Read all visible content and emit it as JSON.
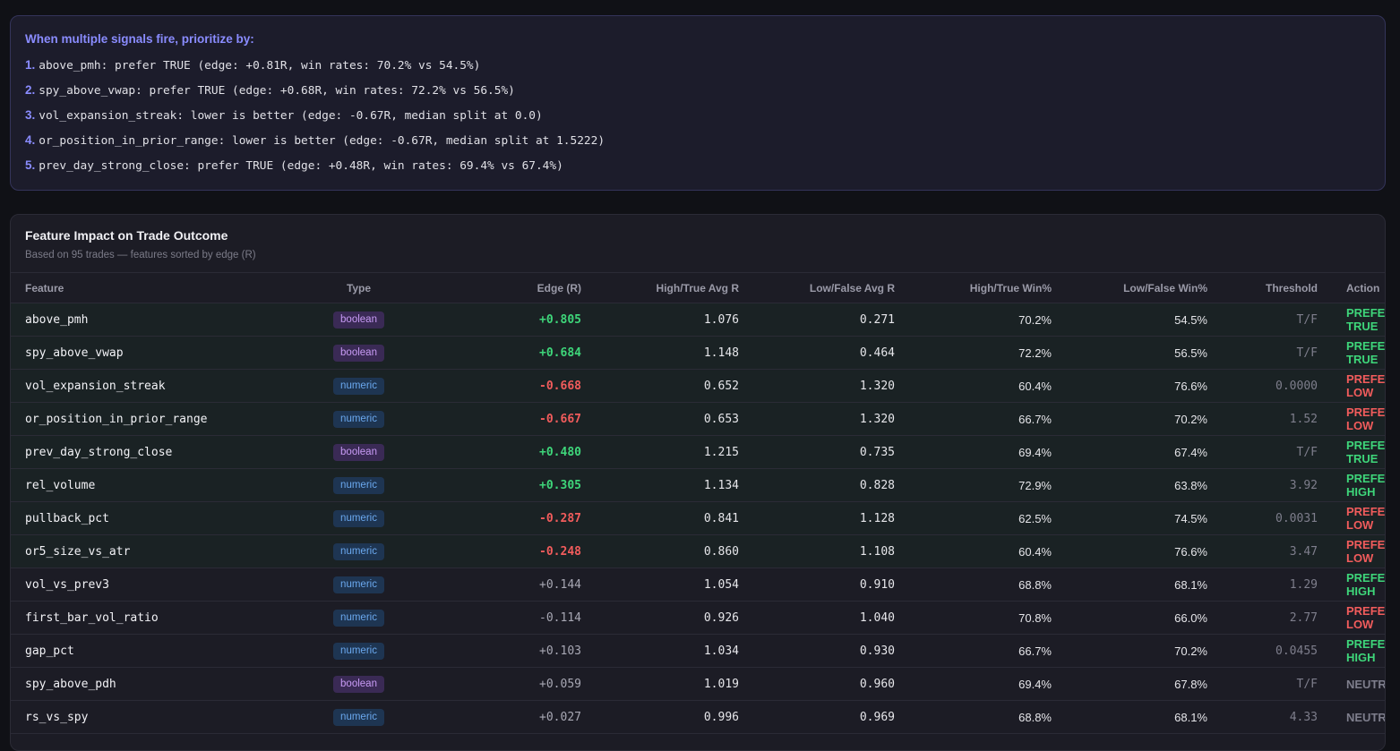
{
  "priority": {
    "title": "When multiple signals fire, prioritize by:",
    "items": [
      {
        "num": "1.",
        "text": "above_pmh: prefer TRUE (edge: +0.81R, win rates: 70.2% vs 54.5%)"
      },
      {
        "num": "2.",
        "text": "spy_above_vwap: prefer TRUE (edge: +0.68R, win rates: 72.2% vs 56.5%)"
      },
      {
        "num": "3.",
        "text": "vol_expansion_streak: lower is better (edge: -0.67R, median split at 0.0)"
      },
      {
        "num": "4.",
        "text": "or_position_in_prior_range: lower is better (edge: -0.67R, median split at 1.5222)"
      },
      {
        "num": "5.",
        "text": "prev_day_strong_close: prefer TRUE (edge: +0.48R, win rates: 69.4% vs 67.4%)"
      }
    ]
  },
  "impact": {
    "title": "Feature Impact on Trade Outcome",
    "subtitle": "Based on 95 trades — features sorted by edge (R)",
    "columns": {
      "feature": "Feature",
      "type": "Type",
      "edge": "Edge (R)",
      "high_avg": "High/True Avg R",
      "low_avg": "Low/False Avg R",
      "high_win": "High/True Win%",
      "low_win": "Low/False Win%",
      "threshold": "Threshold",
      "action": "Action"
    },
    "rows": [
      {
        "feature": "above_pmh",
        "type": "boolean",
        "edge": "+0.805",
        "high_avg": "1.076",
        "low_avg": "0.271",
        "high_win": "70.2%",
        "low_win": "54.5%",
        "threshold": "T/F",
        "action": "PREFER TRUE",
        "edge_style": "pos",
        "action_style": "true",
        "strong": true
      },
      {
        "feature": "spy_above_vwap",
        "type": "boolean",
        "edge": "+0.684",
        "high_avg": "1.148",
        "low_avg": "0.464",
        "high_win": "72.2%",
        "low_win": "56.5%",
        "threshold": "T/F",
        "action": "PREFER TRUE",
        "edge_style": "pos",
        "action_style": "true",
        "strong": true
      },
      {
        "feature": "vol_expansion_streak",
        "type": "numeric",
        "edge": "-0.668",
        "high_avg": "0.652",
        "low_avg": "1.320",
        "high_win": "60.4%",
        "low_win": "76.6%",
        "threshold": "0.0000",
        "action": "PREFER LOW",
        "edge_style": "neg",
        "action_style": "low",
        "strong": true
      },
      {
        "feature": "or_position_in_prior_range",
        "type": "numeric",
        "edge": "-0.667",
        "high_avg": "0.653",
        "low_avg": "1.320",
        "high_win": "66.7%",
        "low_win": "70.2%",
        "threshold": "1.52",
        "action": "PREFER LOW",
        "edge_style": "neg",
        "action_style": "low",
        "strong": true
      },
      {
        "feature": "prev_day_strong_close",
        "type": "boolean",
        "edge": "+0.480",
        "high_avg": "1.215",
        "low_avg": "0.735",
        "high_win": "69.4%",
        "low_win": "67.4%",
        "threshold": "T/F",
        "action": "PREFER TRUE",
        "edge_style": "pos",
        "action_style": "true",
        "strong": true
      },
      {
        "feature": "rel_volume",
        "type": "numeric",
        "edge": "+0.305",
        "high_avg": "1.134",
        "low_avg": "0.828",
        "high_win": "72.9%",
        "low_win": "63.8%",
        "threshold": "3.92",
        "action": "PREFER HIGH",
        "edge_style": "pos",
        "action_style": "high",
        "strong": true
      },
      {
        "feature": "pullback_pct",
        "type": "numeric",
        "edge": "-0.287",
        "high_avg": "0.841",
        "low_avg": "1.128",
        "high_win": "62.5%",
        "low_win": "74.5%",
        "threshold": "0.0031",
        "action": "PREFER LOW",
        "edge_style": "neg",
        "action_style": "low",
        "strong": true
      },
      {
        "feature": "or5_size_vs_atr",
        "type": "numeric",
        "edge": "-0.248",
        "high_avg": "0.860",
        "low_avg": "1.108",
        "high_win": "60.4%",
        "low_win": "76.6%",
        "threshold": "3.47",
        "action": "PREFER LOW",
        "edge_style": "neg",
        "action_style": "low",
        "strong": true
      },
      {
        "feature": "vol_vs_prev3",
        "type": "numeric",
        "edge": "+0.144",
        "high_avg": "1.054",
        "low_avg": "0.910",
        "high_win": "68.8%",
        "low_win": "68.1%",
        "threshold": "1.29",
        "action": "PREFER HIGH",
        "edge_style": "weak",
        "action_style": "high",
        "strong": false
      },
      {
        "feature": "first_bar_vol_ratio",
        "type": "numeric",
        "edge": "-0.114",
        "high_avg": "0.926",
        "low_avg": "1.040",
        "high_win": "70.8%",
        "low_win": "66.0%",
        "threshold": "2.77",
        "action": "PREFER LOW",
        "edge_style": "weak",
        "action_style": "low",
        "strong": false
      },
      {
        "feature": "gap_pct",
        "type": "numeric",
        "edge": "+0.103",
        "high_avg": "1.034",
        "low_avg": "0.930",
        "high_win": "66.7%",
        "low_win": "70.2%",
        "threshold": "0.0455",
        "action": "PREFER HIGH",
        "edge_style": "weak",
        "action_style": "high",
        "strong": false
      },
      {
        "feature": "spy_above_pdh",
        "type": "boolean",
        "edge": "+0.059",
        "high_avg": "1.019",
        "low_avg": "0.960",
        "high_win": "69.4%",
        "low_win": "67.8%",
        "threshold": "T/F",
        "action": "NEUTRAL",
        "edge_style": "weak",
        "action_style": "neutral",
        "strong": false
      },
      {
        "feature": "rs_vs_spy",
        "type": "numeric",
        "edge": "+0.027",
        "high_avg": "0.996",
        "low_avg": "0.969",
        "high_win": "68.8%",
        "low_win": "68.1%",
        "threshold": "4.33",
        "action": "NEUTRAL",
        "edge_style": "weak",
        "action_style": "neutral",
        "strong": false
      }
    ]
  }
}
